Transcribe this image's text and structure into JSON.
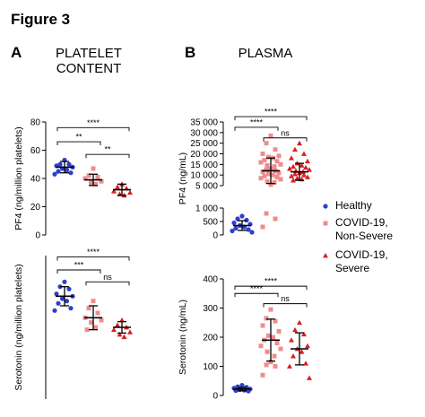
{
  "figure_title": "Figure 3",
  "colors": {
    "healthy": "#2d3fcf",
    "non_severe": "#f08c8c",
    "severe": "#d91f1f",
    "bar": "#000000"
  },
  "legend": {
    "items": [
      {
        "name": "Healthy",
        "marker": "circle",
        "color": "#2d3fcf"
      },
      {
        "name": "COVID-19,\nNon-Severe",
        "marker": "square",
        "color": "#f08c8c"
      },
      {
        "name": "COVID-19,\nSevere",
        "marker": "triangle",
        "color": "#d91f1f"
      }
    ]
  },
  "chart_data": [
    {
      "id": "A-top",
      "panel_letter": "A",
      "panel_title": "PLATELET\nCONTENT",
      "type": "scatter",
      "ylabel": "PF4 (ng/million platelets)",
      "ylim": [
        0,
        80
      ],
      "yticks": [
        0,
        20,
        40,
        60,
        80
      ],
      "mean_sd": [
        {
          "group": "Healthy",
          "mean": 48,
          "sd": 4
        },
        {
          "group": "COVID-19, Non-Severe",
          "mean": 39,
          "sd": 4
        },
        {
          "group": "COVID-19, Severe",
          "mean": 32,
          "sd": 4
        }
      ],
      "series": [
        {
          "group": "Healthy",
          "values": [
            53,
            50,
            50,
            49,
            48,
            47,
            46,
            45,
            44,
            43
          ]
        },
        {
          "group": "COVID-19, Non-Severe",
          "values": [
            47,
            42,
            41,
            40,
            38,
            37,
            36
          ]
        },
        {
          "group": "COVID-19, Severe",
          "values": [
            36,
            34,
            33,
            31,
            30,
            29,
            28
          ]
        }
      ],
      "significance": [
        {
          "from": 0,
          "to": 2,
          "label": "****",
          "y": 76
        },
        {
          "from": 0,
          "to": 1,
          "label": "**",
          "y": 66
        },
        {
          "from": 1,
          "to": 2,
          "label": "**",
          "y": 57
        }
      ]
    },
    {
      "id": "A-bottom",
      "type": "scatter",
      "ylabel": "Serotonin (ng/million platelets)",
      "ylim": [
        0,
        3.0
      ],
      "yticks": [],
      "mean_sd": [
        {
          "group": "Healthy",
          "mean": 2.15,
          "sd": 0.2
        },
        {
          "group": "COVID-19, Non-Severe",
          "mean": 1.7,
          "sd": 0.25
        },
        {
          "group": "COVID-19, Severe",
          "mean": 1.5,
          "sd": 0.12
        }
      ],
      "series": [
        {
          "group": "Healthy",
          "values": [
            2.45,
            2.35,
            2.3,
            2.2,
            2.15,
            2.1,
            2.05,
            2.0,
            1.9,
            1.85
          ]
        },
        {
          "group": "COVID-19, Non-Severe",
          "values": [
            2.05,
            1.9,
            1.8,
            1.7,
            1.65,
            1.6,
            1.5,
            1.45
          ]
        },
        {
          "group": "COVID-19, Severe",
          "values": [
            1.65,
            1.55,
            1.5,
            1.45,
            1.4,
            1.35,
            1.3
          ]
        }
      ],
      "significance": [
        {
          "from": 0,
          "to": 2,
          "label": "****",
          "y": 2.97
        },
        {
          "from": 0,
          "to": 1,
          "label": "***",
          "y": 2.7
        },
        {
          "from": 1,
          "to": 2,
          "label": "ns",
          "y": 2.45
        }
      ]
    },
    {
      "id": "B-top",
      "panel_letter": "B",
      "panel_title": "PLASMA",
      "type": "scatter",
      "ylabel": "PF4 (ng/mL)",
      "broken_axis": true,
      "ylim_lower": [
        0,
        1000
      ],
      "yticks_lower": [
        "0",
        "500",
        "1 000"
      ],
      "ylim_upper": [
        5000,
        35000
      ],
      "yticks_upper": [
        "5 000",
        "10 000",
        "15 000",
        "20 000",
        "25 000",
        "30 000",
        "35 000"
      ],
      "mean_sd": [
        {
          "group": "Healthy",
          "mean": 350,
          "sd": 180
        },
        {
          "group": "COVID-19, Non-Severe",
          "mean": 12000,
          "sd": 6000
        },
        {
          "group": "COVID-19, Severe",
          "mean": 11500,
          "sd": 4000
        }
      ],
      "series": [
        {
          "group": "Healthy",
          "values": [
            700,
            600,
            550,
            450,
            400,
            350,
            300,
            250,
            200,
            150,
            100
          ]
        },
        {
          "group": "COVID-19, Non-Severe",
          "values": [
            28500,
            25000,
            22000,
            20000,
            19000,
            18500,
            18000,
            17000,
            16500,
            16000,
            15000,
            14500,
            14000,
            13000,
            12500,
            12000,
            11500,
            11000,
            10500,
            10000,
            9500,
            9000,
            8500,
            8000,
            7000,
            6500,
            5500,
            800,
            600,
            300
          ]
        },
        {
          "group": "COVID-19, Severe",
          "values": [
            25000,
            22000,
            20000,
            18000,
            16500,
            15500,
            14500,
            14000,
            13500,
            13000,
            12500,
            12000,
            11500,
            11000,
            10500,
            10000,
            9500,
            9000,
            8500,
            8000,
            7500
          ]
        }
      ],
      "significance": [
        {
          "from": 0,
          "to": 2,
          "label": "****",
          "y": 37500
        },
        {
          "from": 0,
          "to": 1,
          "label": "****",
          "y": 32500
        },
        {
          "from": 1,
          "to": 2,
          "label": "ns",
          "y": 27500
        }
      ]
    },
    {
      "id": "B-bottom",
      "type": "scatter",
      "ylabel": "Serotonin (ng/mL)",
      "ylim": [
        0,
        400
      ],
      "yticks": [
        0,
        100,
        200,
        300,
        400
      ],
      "mean_sd": [
        {
          "group": "Healthy",
          "mean": 22,
          "sd": 6
        },
        {
          "group": "COVID-19, Non-Severe",
          "mean": 190,
          "sd": 72
        },
        {
          "group": "COVID-19, Severe",
          "mean": 160,
          "sd": 55
        }
      ],
      "series": [
        {
          "group": "Healthy",
          "values": [
            35,
            30,
            28,
            25,
            22,
            20,
            18,
            17,
            15
          ]
        },
        {
          "group": "COVID-19, Non-Severe",
          "values": [
            295,
            265,
            255,
            240,
            220,
            205,
            200,
            190,
            180,
            170,
            160,
            150,
            135,
            115,
            105,
            100,
            70
          ]
        },
        {
          "group": "COVID-19, Severe",
          "values": [
            250,
            225,
            210,
            190,
            170,
            160,
            150,
            135,
            110,
            100,
            60
          ]
        }
      ],
      "significance": [
        {
          "from": 0,
          "to": 2,
          "label": "****",
          "y": 375
        },
        {
          "from": 0,
          "to": 1,
          "label": "****",
          "y": 350
        },
        {
          "from": 1,
          "to": 2,
          "label": "ns",
          "y": 315
        }
      ]
    }
  ]
}
